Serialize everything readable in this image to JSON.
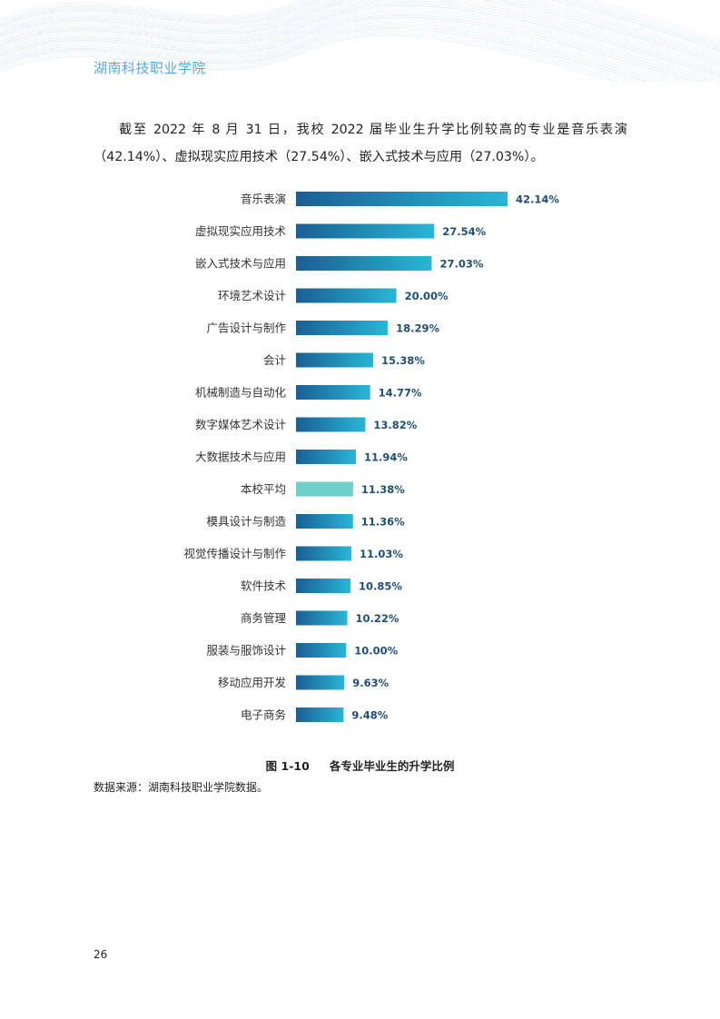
{
  "header": {
    "title": "湖南科技职业学院"
  },
  "paragraph": "截至 2022 年 8 月 31 日，我校 2022 届毕业生升学比例较高的专业是音乐表演（42.14%）、虚拟现实应用技术（27.54%）、嵌入式技术与应用（27.03%）。",
  "chart_data": {
    "type": "bar",
    "orientation": "horizontal",
    "categories": [
      "音乐表演",
      "虚拟现实应用技术",
      "嵌入式技术与应用",
      "环境艺术设计",
      "广告设计与制作",
      "会计",
      "机械制造与自动化",
      "数字媒体艺术设计",
      "大数据技术与应用",
      "本校平均",
      "模具设计与制造",
      "视觉传播设计与制作",
      "软件技术",
      "商务管理",
      "服装与服饰设计",
      "移动应用开发",
      "电子商务"
    ],
    "values": [
      42.14,
      27.54,
      27.03,
      20.0,
      18.29,
      15.38,
      14.77,
      13.82,
      11.94,
      11.38,
      11.36,
      11.03,
      10.85,
      10.22,
      10.0,
      9.63,
      9.48
    ],
    "value_labels": [
      "42.14%",
      "27.54%",
      "27.03%",
      "20.00%",
      "18.29%",
      "15.38%",
      "14.77%",
      "13.82%",
      "11.94%",
      "11.38%",
      "11.36%",
      "11.03%",
      "10.85%",
      "10.22%",
      "10.00%",
      "9.63%",
      "9.48%"
    ],
    "highlight_category": "本校平均",
    "colors": {
      "bar_start": "#1a5f94",
      "bar_end": "#29b6d6",
      "highlight": "#6fcfcb",
      "label": "#1f4e79"
    },
    "xlim": [
      0,
      42.14
    ],
    "grid": false,
    "legend": "none"
  },
  "caption": {
    "number": "图 1-10",
    "text": "各专业毕业生的升学比例"
  },
  "source": "数据来源：湖南科技职业学院数据。",
  "page_number": "26"
}
